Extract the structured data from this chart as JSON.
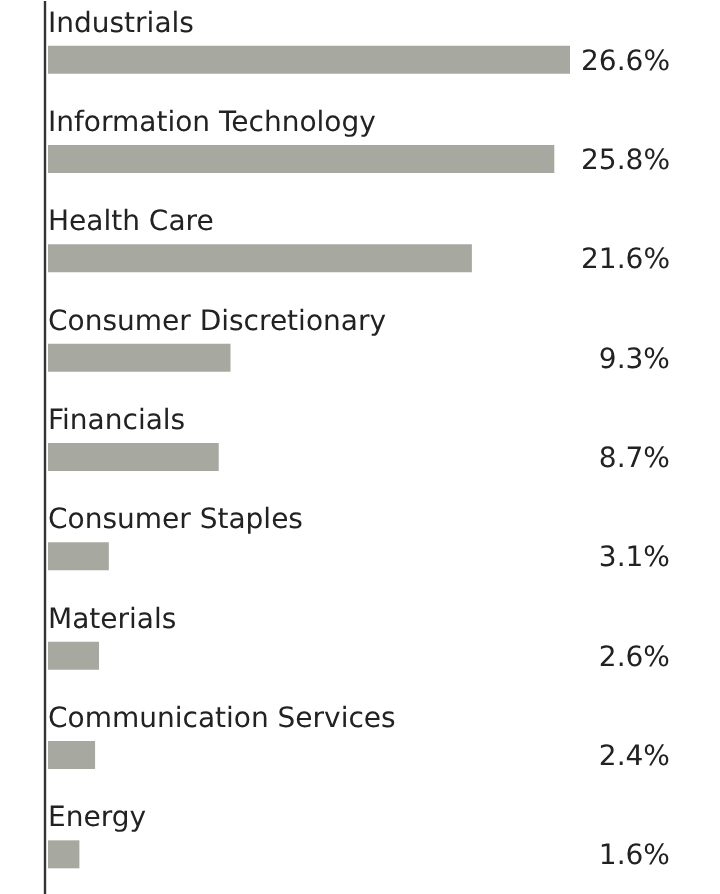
{
  "chart_data": {
    "type": "bar",
    "orientation": "horizontal",
    "categories": [
      "Industrials",
      "Information Technology",
      "Health Care",
      "Consumer Discretionary",
      "Financials",
      "Consumer Staples",
      "Materials",
      "Communication Services",
      "Energy"
    ],
    "values": [
      26.6,
      25.8,
      21.6,
      9.3,
      8.7,
      3.1,
      2.6,
      2.4,
      1.6
    ],
    "color": "#a7a89f",
    "value_labels": [
      "26.6%",
      "25.8%",
      "21.6%",
      "9.3%",
      "8.7%",
      "3.1%",
      "2.6%",
      "2.4%",
      "1.6%"
    ]
  }
}
